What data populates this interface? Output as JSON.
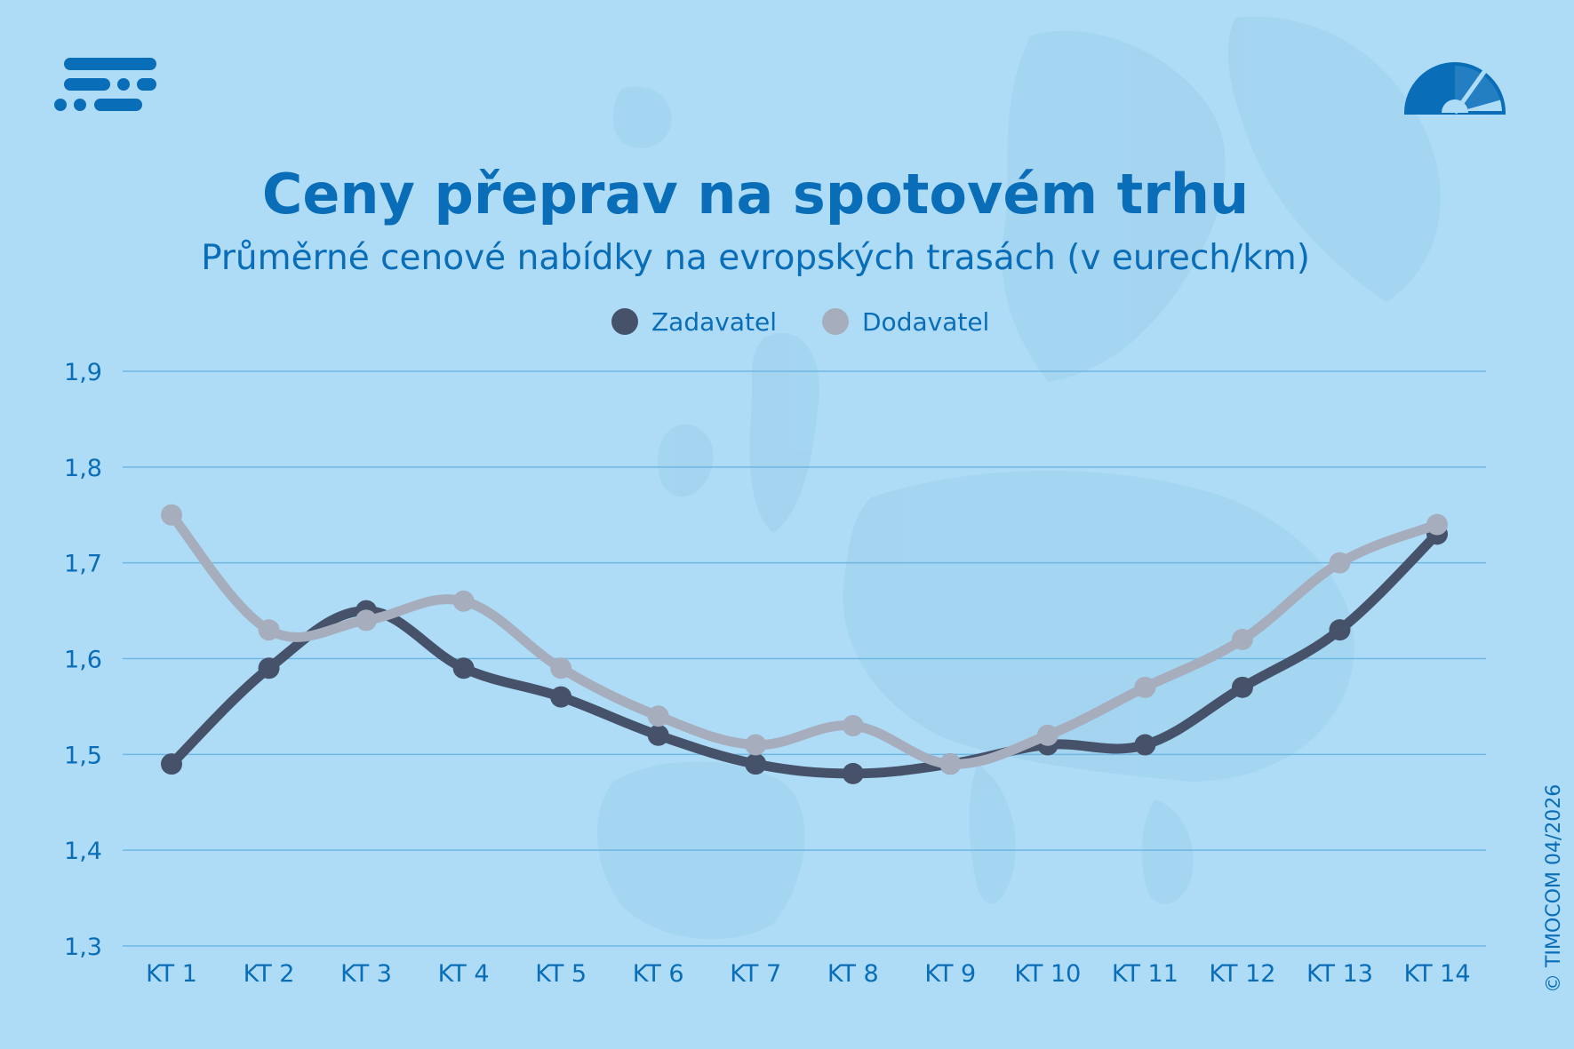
{
  "title": "Ceny přeprav na spotovém trhu",
  "subtitle": "Průměrné cenové nabídky na evropských trasách (v eurech/km)",
  "credit": "© TIMOCOM  04/2026",
  "colors": {
    "background": "#aedcf7",
    "accent": "#0a6db8",
    "gridline": "#6fb7e3",
    "series_zadavatel": "#46526a",
    "series_dodavatel": "#a6aebd"
  },
  "chart_data": {
    "type": "line",
    "title": "Ceny přeprav na spotovém trhu",
    "subtitle": "Průměrné cenové nabídky na evropských trasách (v eurech/km)",
    "categories": [
      "KT 1",
      "KT 2",
      "KT 3",
      "KT 4",
      "KT 5",
      "KT 6",
      "KT 7",
      "KT 8",
      "KT 9",
      "KT 10",
      "KT 11",
      "KT 12",
      "KT 13",
      "KT 14"
    ],
    "series": [
      {
        "name": "Zadavatel",
        "color": "#46526a",
        "values": [
          1.49,
          1.59,
          1.65,
          1.59,
          1.56,
          1.52,
          1.49,
          1.48,
          1.49,
          1.51,
          1.51,
          1.57,
          1.63,
          1.73
        ]
      },
      {
        "name": "Dodavatel",
        "color": "#a6aebd",
        "values": [
          1.75,
          1.63,
          1.64,
          1.66,
          1.59,
          1.54,
          1.51,
          1.53,
          1.49,
          1.52,
          1.57,
          1.62,
          1.7,
          1.74
        ]
      }
    ],
    "yticks": [
      1.3,
      1.4,
      1.5,
      1.6,
      1.7,
      1.8,
      1.9
    ],
    "ytick_labels": [
      "1,3",
      "1,4",
      "1,5",
      "1,6",
      "1,7",
      "1,8",
      "1,9"
    ],
    "ylim": [
      1.3,
      1.9
    ],
    "grid": true,
    "legend_position": "top-center",
    "xlabel": "",
    "ylabel": ""
  }
}
